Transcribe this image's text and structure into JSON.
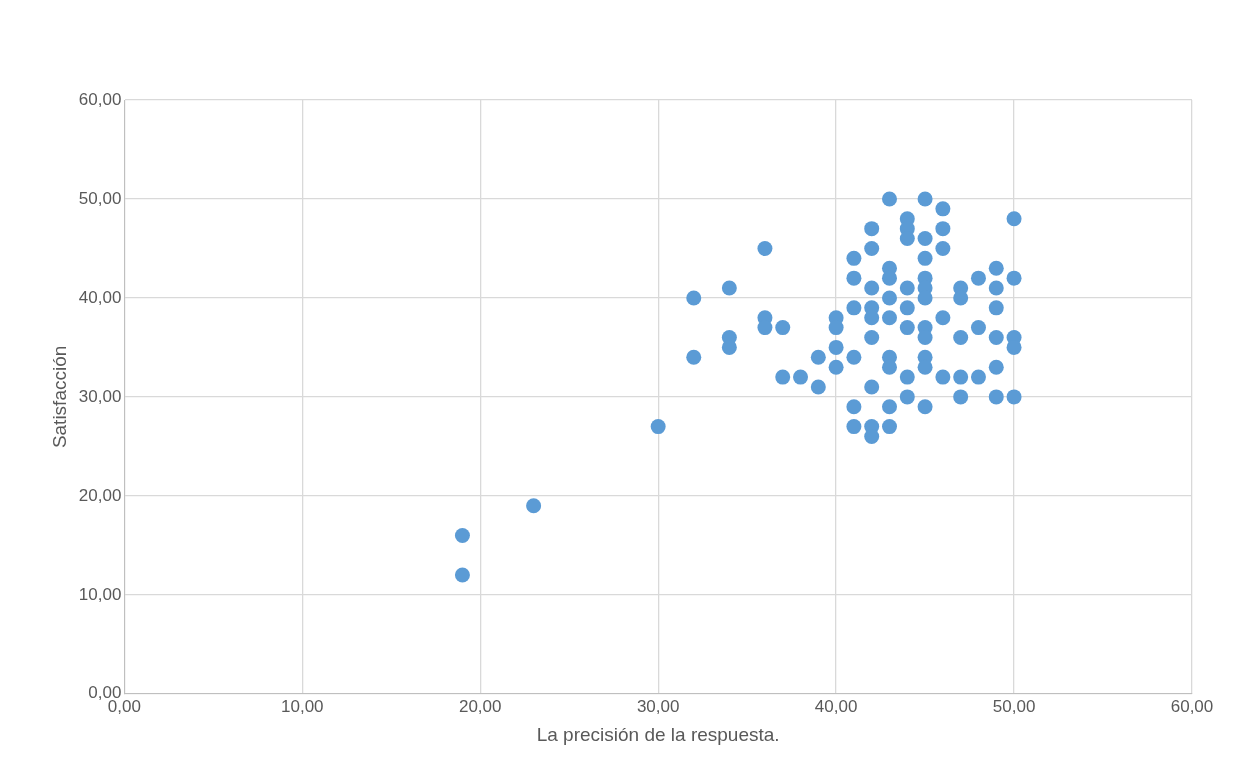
{
  "chart_data": {
    "type": "scatter",
    "xlabel": "La precisión de la respuesta.",
    "ylabel": "Satisfacción",
    "marker": "circle",
    "grid": true,
    "xlim": [
      0,
      60
    ],
    "ylim": [
      0,
      60
    ],
    "xticks": [
      {
        "value": 0,
        "label": "0,00"
      },
      {
        "value": 10,
        "label": "10,00"
      },
      {
        "value": 20,
        "label": "20,00"
      },
      {
        "value": 30,
        "label": "30,00"
      },
      {
        "value": 40,
        "label": "40,00"
      },
      {
        "value": 50,
        "label": "50,00"
      },
      {
        "value": 60,
        "label": "60,00"
      }
    ],
    "yticks": [
      {
        "value": 0,
        "label": "0,00"
      },
      {
        "value": 10,
        "label": "10,00"
      },
      {
        "value": 20,
        "label": "20,00"
      },
      {
        "value": 30,
        "label": "30,00"
      },
      {
        "value": 40,
        "label": "40,00"
      },
      {
        "value": 50,
        "label": "50,00"
      },
      {
        "value": 60,
        "label": "60,00"
      }
    ],
    "series": [
      {
        "color": "#5b9bd5",
        "x": [
          19,
          19,
          23,
          30,
          32,
          32,
          34,
          34,
          34,
          36,
          36,
          36,
          37,
          37,
          38,
          39,
          39,
          40,
          40,
          40,
          40,
          41,
          41,
          41,
          41,
          41,
          41,
          42,
          42,
          42,
          42,
          42,
          42,
          42,
          42,
          42,
          43,
          43,
          43,
          43,
          43,
          43,
          43,
          43,
          43,
          44,
          44,
          44,
          44,
          44,
          44,
          44,
          44,
          45,
          45,
          45,
          45,
          45,
          45,
          45,
          45,
          45,
          45,
          45,
          46,
          46,
          46,
          46,
          46,
          47,
          47,
          47,
          47,
          47,
          48,
          48,
          48,
          49,
          49,
          49,
          49,
          49,
          49,
          50,
          50,
          50,
          50,
          50
        ],
        "values": [
          16,
          12,
          19,
          27,
          40,
          34,
          41,
          36,
          35,
          45,
          38,
          37,
          37,
          32,
          32,
          34,
          31,
          38,
          37,
          35,
          33,
          44,
          42,
          39,
          34,
          29,
          27,
          47,
          45,
          41,
          39,
          38,
          36,
          31,
          27,
          26,
          50,
          43,
          42,
          40,
          38,
          34,
          33,
          29,
          27,
          48,
          47,
          46,
          41,
          39,
          37,
          32,
          30,
          50,
          46,
          44,
          42,
          41,
          40,
          37,
          36,
          34,
          33,
          29,
          49,
          47,
          45,
          38,
          32,
          41,
          40,
          36,
          32,
          30,
          42,
          37,
          32,
          43,
          41,
          39,
          36,
          33,
          30,
          48,
          42,
          36,
          35,
          30
        ]
      }
    ]
  }
}
